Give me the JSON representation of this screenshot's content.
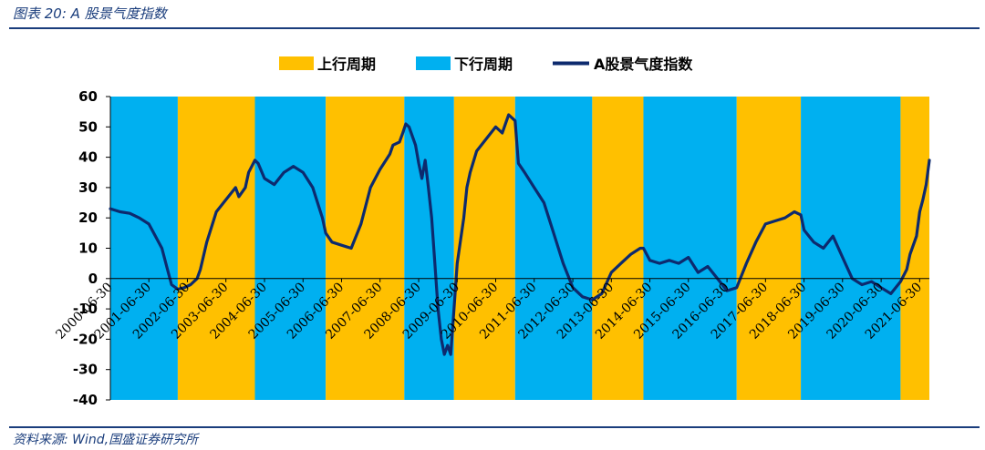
{
  "header": {
    "figure_title": "图表 20:  A 股景气度指数"
  },
  "footer": {
    "source": "资料来源:  Wind,国盛证券研究所"
  },
  "colors": {
    "up_cycle": "#FFC000",
    "down_cycle": "#00B0F0",
    "line": "#0D2A6E",
    "rule": "#1a3d7c"
  },
  "chart_data": {
    "type": "line",
    "title": "",
    "xlabel": "",
    "ylabel": "",
    "ylim": [
      -40,
      60
    ],
    "yticks": [
      -40,
      -30,
      -20,
      -10,
      0,
      10,
      20,
      30,
      40,
      50,
      60
    ],
    "xlim": [
      "2000-06-30",
      "2021-09-30"
    ],
    "x_tick_labels": [
      "2000-06-30",
      "2001-06-30",
      "2002-06-30",
      "2003-06-30",
      "2004-06-30",
      "2005-06-30",
      "2006-06-30",
      "2007-06-30",
      "2008-06-30",
      "2009-06-30",
      "2010-06-30",
      "2011-06-30",
      "2012-06-30",
      "2013-06-30",
      "2014-06-30",
      "2015-06-30",
      "2016-06-30",
      "2017-06-30",
      "2018-06-30",
      "2019-06-30",
      "2020-06-30",
      "2021-06-30"
    ],
    "legend": {
      "placement": "top-center",
      "entries": [
        {
          "label": "上行周期",
          "kind": "area",
          "color": "#FFC000"
        },
        {
          "label": "下行周期",
          "kind": "area",
          "color": "#00B0F0"
        },
        {
          "label": "A股景气度指数",
          "kind": "line",
          "color": "#0D2A6E"
        }
      ]
    },
    "periods": [
      {
        "type": "down",
        "start": "2000-06-30",
        "end": "2002-03-31"
      },
      {
        "type": "up",
        "start": "2002-03-31",
        "end": "2004-03-31"
      },
      {
        "type": "down",
        "start": "2004-03-31",
        "end": "2006-01-31"
      },
      {
        "type": "up",
        "start": "2006-01-31",
        "end": "2008-02-15"
      },
      {
        "type": "down",
        "start": "2008-02-15",
        "end": "2009-05-31"
      },
      {
        "type": "up",
        "start": "2009-05-31",
        "end": "2010-12-31"
      },
      {
        "type": "down",
        "start": "2010-12-31",
        "end": "2012-12-31"
      },
      {
        "type": "up",
        "start": "2012-12-31",
        "end": "2014-04-30"
      },
      {
        "type": "down",
        "start": "2014-04-30",
        "end": "2016-09-30"
      },
      {
        "type": "up",
        "start": "2016-09-30",
        "end": "2018-05-31"
      },
      {
        "type": "down",
        "start": "2018-05-31",
        "end": "2020-12-31"
      },
      {
        "type": "up",
        "start": "2020-12-31",
        "end": "2021-09-30"
      }
    ],
    "series": [
      {
        "name": "A股景气度指数",
        "x": [
          "2000-06-30",
          "2000-09-30",
          "2000-12-31",
          "2001-03-31",
          "2001-06-30",
          "2001-08-31",
          "2001-10-31",
          "2001-12-31",
          "2002-01-31",
          "2002-03-31",
          "2002-05-31",
          "2002-07-31",
          "2002-09-30",
          "2002-10-31",
          "2002-12-31",
          "2003-03-31",
          "2003-06-30",
          "2003-09-30",
          "2003-10-31",
          "2003-12-31",
          "2004-01-31",
          "2004-03-31",
          "2004-04-30",
          "2004-06-30",
          "2004-09-30",
          "2004-12-31",
          "2005-03-31",
          "2005-06-30",
          "2005-09-30",
          "2005-12-31",
          "2006-01-31",
          "2006-03-31",
          "2006-06-30",
          "2006-09-30",
          "2006-12-31",
          "2007-03-31",
          "2007-06-30",
          "2007-09-30",
          "2007-10-31",
          "2007-12-31",
          "2008-01-31",
          "2008-02-29",
          "2008-03-31",
          "2008-05-31",
          "2008-06-30",
          "2008-07-31",
          "2008-08-31",
          "2008-09-30",
          "2008-10-31",
          "2008-11-30",
          "2008-12-31",
          "2009-01-31",
          "2009-02-28",
          "2009-03-31",
          "2009-04-30",
          "2009-05-31",
          "2009-06-30",
          "2009-08-31",
          "2009-09-30",
          "2009-10-31",
          "2009-12-31",
          "2010-03-31",
          "2010-06-30",
          "2010-08-31",
          "2010-10-31",
          "2010-12-31",
          "2011-01-31",
          "2011-03-31",
          "2011-06-30",
          "2011-09-30",
          "2011-12-31",
          "2012-03-31",
          "2012-06-30",
          "2012-09-30",
          "2012-12-31",
          "2013-03-31",
          "2013-06-30",
          "2013-09-30",
          "2013-12-31",
          "2014-03-31",
          "2014-04-30",
          "2014-06-30",
          "2014-09-30",
          "2014-12-31",
          "2015-03-31",
          "2015-06-30",
          "2015-09-30",
          "2015-12-31",
          "2016-03-31",
          "2016-06-30",
          "2016-09-30",
          "2016-12-31",
          "2017-03-31",
          "2017-06-30",
          "2017-09-30",
          "2017-12-31",
          "2018-03-31",
          "2018-05-31",
          "2018-06-30",
          "2018-09-30",
          "2018-12-31",
          "2019-03-31",
          "2019-06-30",
          "2019-09-30",
          "2019-12-31",
          "2020-03-31",
          "2020-06-30",
          "2020-09-30",
          "2020-12-31",
          "2021-02-28",
          "2021-03-31",
          "2021-05-31",
          "2021-06-30",
          "2021-07-31",
          "2021-08-31",
          "2021-09-30"
        ],
        "values": [
          23,
          22,
          21.5,
          20,
          18,
          14,
          10,
          2,
          -2,
          -3.5,
          -3,
          -2,
          0,
          3,
          12,
          22,
          26,
          30,
          27,
          30,
          35,
          39,
          38,
          33,
          31,
          35,
          37,
          35,
          30,
          20,
          15,
          12,
          11,
          10,
          18,
          30,
          36,
          41,
          44,
          45,
          48,
          51,
          50,
          44,
          38,
          33,
          39,
          30,
          20,
          5,
          -10,
          -20,
          -25,
          -22,
          -25,
          -10,
          5,
          20,
          30,
          35,
          42,
          46,
          50,
          48,
          54,
          52,
          38,
          35,
          30,
          25,
          15,
          5,
          -3,
          -6,
          -7,
          -5,
          2,
          5,
          8,
          10,
          10,
          6,
          5,
          6,
          5,
          7,
          2,
          4,
          0,
          -4,
          -3,
          5,
          12,
          18,
          19,
          20,
          22,
          21,
          16,
          12,
          10,
          14,
          7,
          0,
          -2,
          -1,
          -3,
          -5,
          -1,
          3,
          8,
          14,
          22,
          26,
          31,
          39
        ]
      }
    ]
  }
}
